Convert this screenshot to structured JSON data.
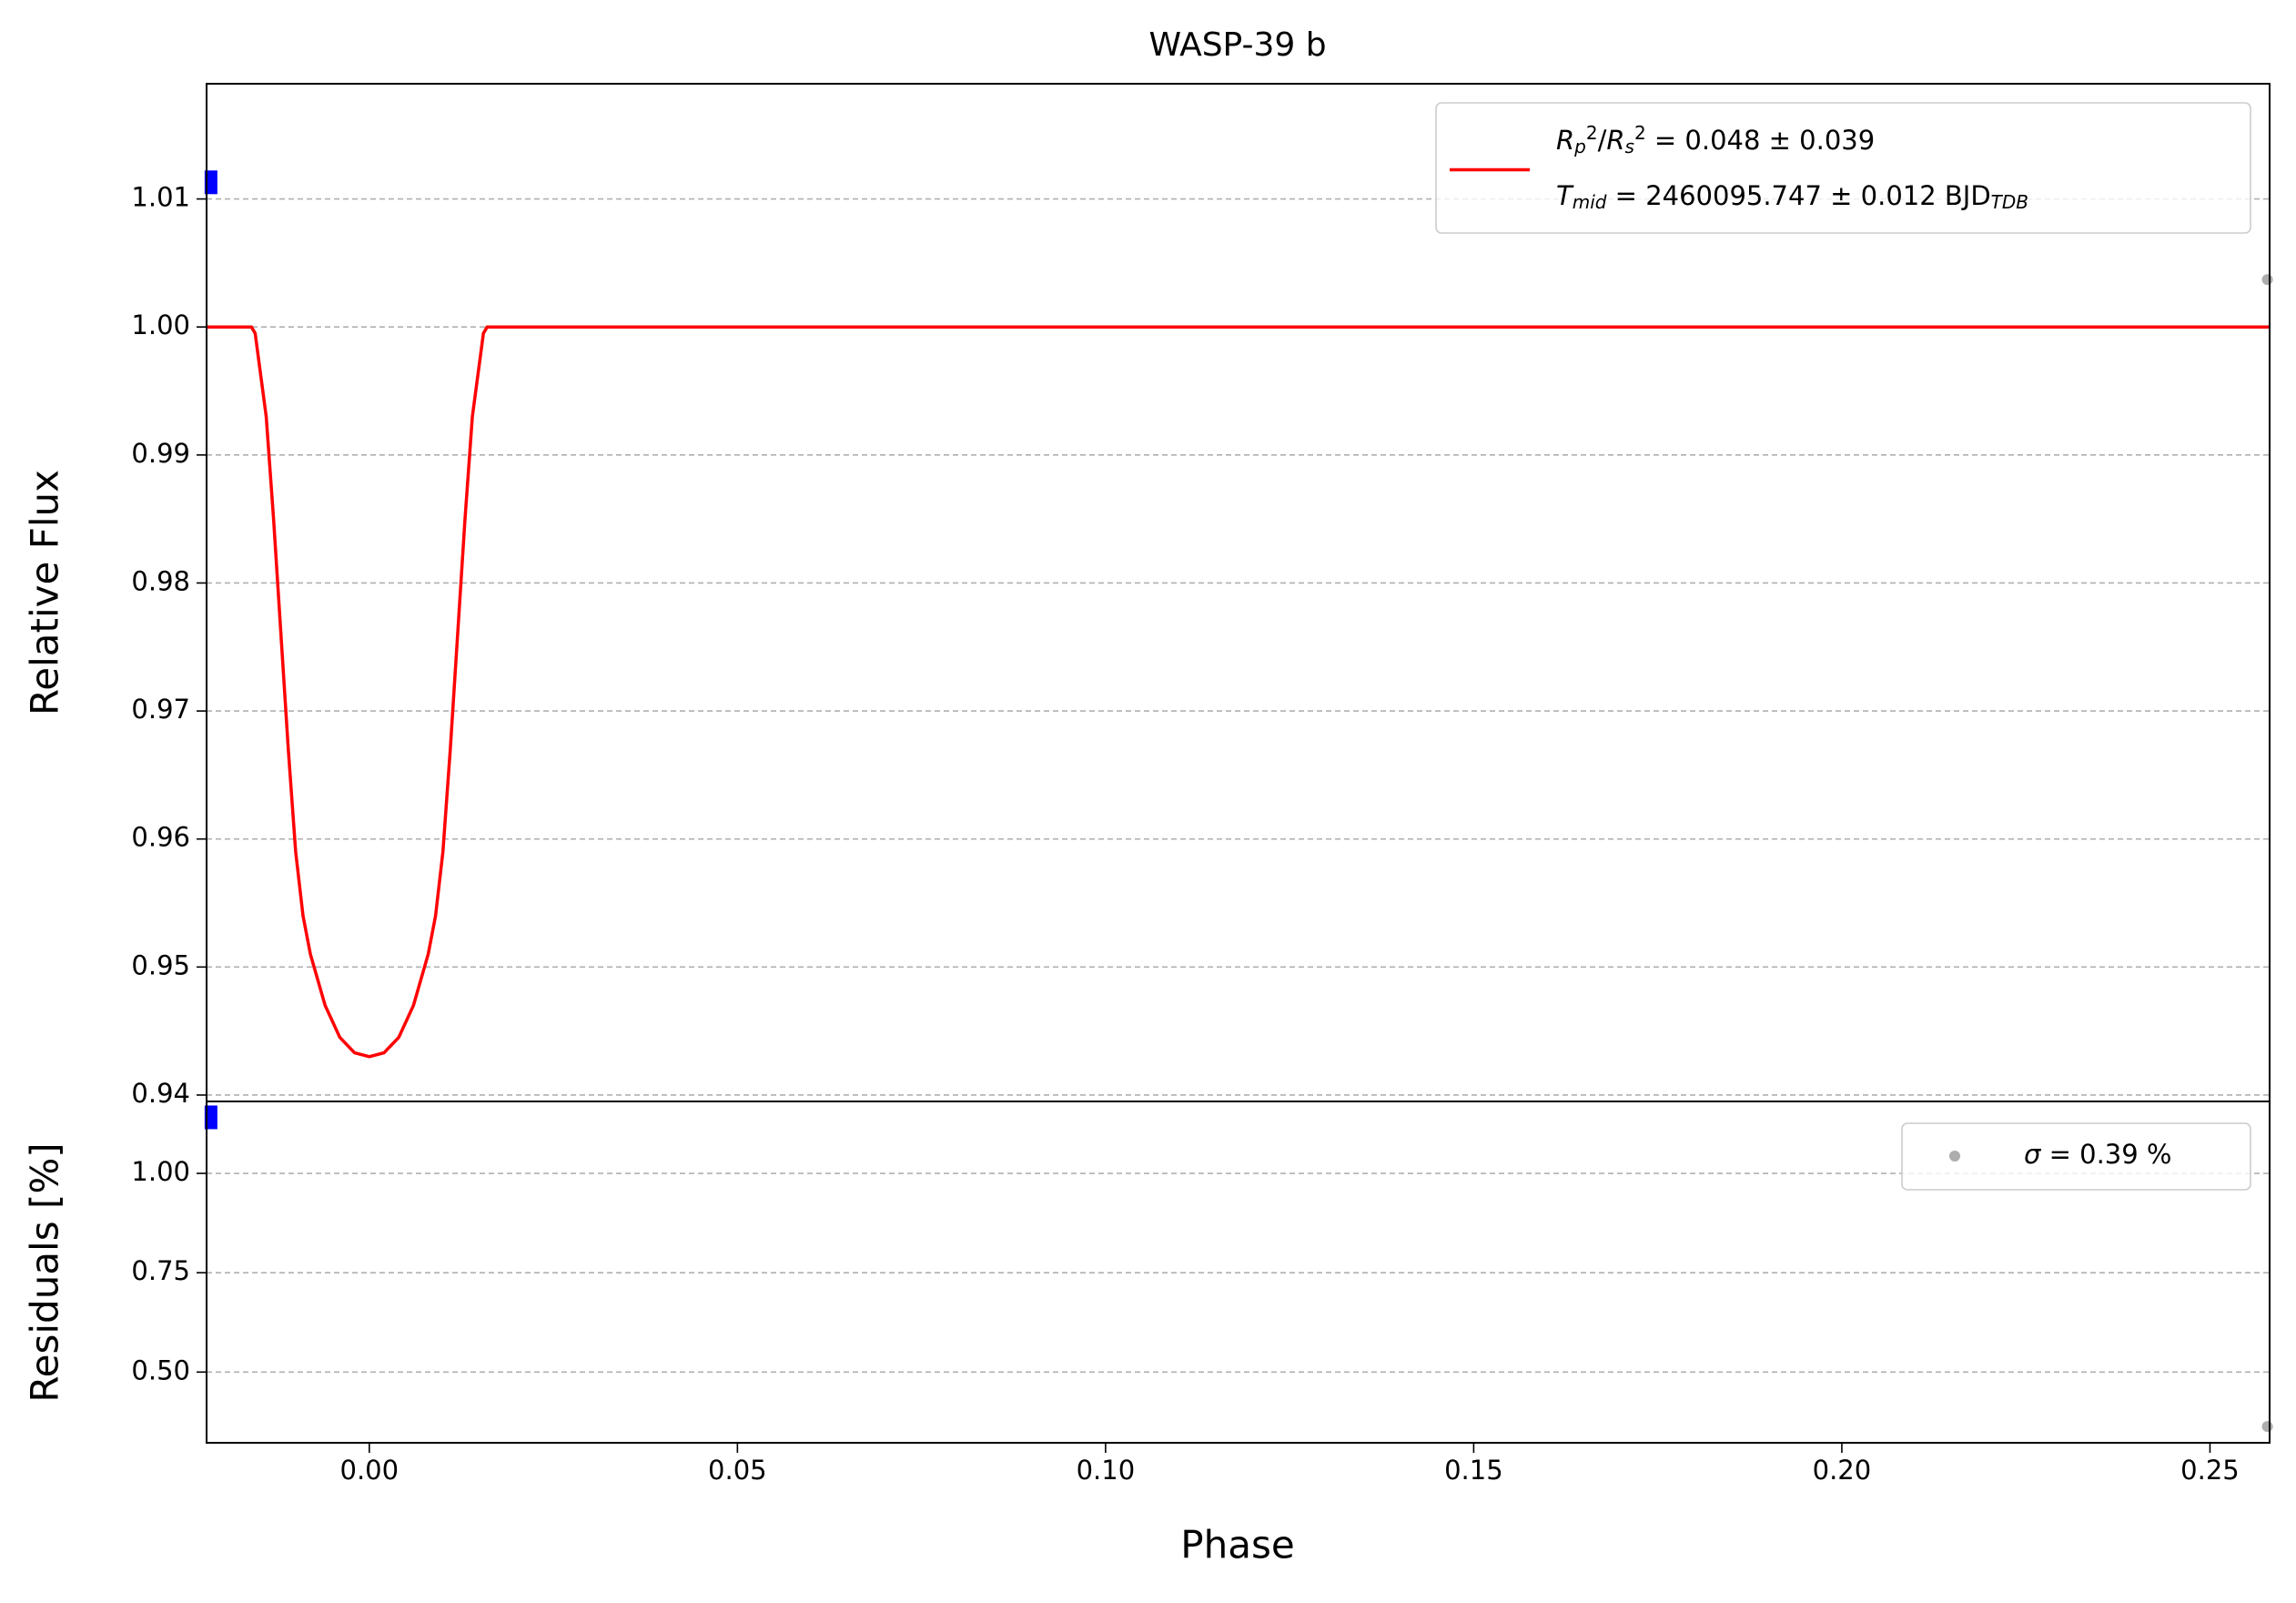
{
  "chart_data": [
    {
      "type": "line",
      "title": "WASP-39 b",
      "ylabel": "Relative Flux",
      "xlim": [
        -0.0221,
        0.2581
      ],
      "ylim": [
        0.9395,
        1.019
      ],
      "yticks": [
        0.94,
        0.95,
        0.96,
        0.97,
        0.98,
        0.99,
        {
          "value": 1.0,
          "label": "1.00"
        },
        1.01
      ],
      "grid": true,
      "series": [
        {
          "name": [
            [
              [
                "R",
                "i"
              ],
              [
                "p",
                "sub-i"
              ],
              [
                "2",
                "sup"
              ],
              [
                "/",
                "n"
              ],
              [
                "R",
                "i"
              ],
              [
                "s",
                "sub-i"
              ],
              [
                "2",
                "sup"
              ],
              [
                " = 0.048 ± 0.039",
                "n"
              ]
            ],
            [
              [
                "T",
                "i"
              ],
              [
                "mid",
                "sub-i"
              ],
              [
                " = 2460095.747 ± 0.012 BJD",
                "n"
              ],
              [
                "TDB",
                "sub-i"
              ]
            ]
          ],
          "color": "#ff0000",
          "marker": "line",
          "x": [
            -0.0221,
            -0.016,
            -0.0155,
            -0.014,
            -0.013,
            -0.012,
            -0.011,
            -0.01,
            -0.009,
            -0.008,
            -0.006,
            -0.004,
            -0.002,
            0,
            0.002,
            0.004,
            0.006,
            0.008,
            0.009,
            0.01,
            0.011,
            0.012,
            0.013,
            0.014,
            0.0155,
            0.016,
            0.2581
          ],
          "values": [
            1.0,
            1.0,
            0.9995,
            0.993,
            0.985,
            0.976,
            0.967,
            0.959,
            0.954,
            0.951,
            0.947,
            0.9445,
            0.9433,
            0.943,
            0.9433,
            0.9445,
            0.947,
            0.951,
            0.954,
            0.959,
            0.967,
            0.976,
            0.985,
            0.993,
            0.9995,
            1.0,
            1.0
          ]
        },
        {
          "color": "#0000ff",
          "marker": "s",
          "x": [
            -0.0215
          ],
          "values": [
            1.0113
          ]
        },
        {
          "color": "#999999",
          "marker": "o",
          "x": [
            0.2578
          ],
          "values": [
            1.0037
          ]
        }
      ]
    },
    {
      "type": "scatter",
      "xlabel": "Phase",
      "ylabel": "Residuals [%]",
      "xlim": [
        -0.0221,
        0.2581
      ],
      "ylim": [
        0.322,
        1.181
      ],
      "xticks": [
        {
          "value": 0.0,
          "label": "0.00"
        },
        0.05,
        {
          "value": 0.1,
          "label": "0.10"
        },
        0.15,
        {
          "value": 0.2,
          "label": "0.20"
        },
        0.25
      ],
      "yticks": [
        {
          "value": 0.5,
          "label": "0.50"
        },
        0.75,
        {
          "value": 1.0,
          "label": "1.00"
        }
      ],
      "grid": true,
      "series": [
        {
          "color": "#0000ff",
          "marker": "s",
          "x": [
            -0.0215
          ],
          "values": [
            1.141
          ]
        },
        {
          "name": [
            [
              [
                "σ",
                "i"
              ],
              [
                " = 0.39 %",
                "n"
              ]
            ]
          ],
          "color": "#999999",
          "marker": "o",
          "x": [
            0.2578
          ],
          "values": [
            0.363
          ]
        }
      ]
    }
  ]
}
